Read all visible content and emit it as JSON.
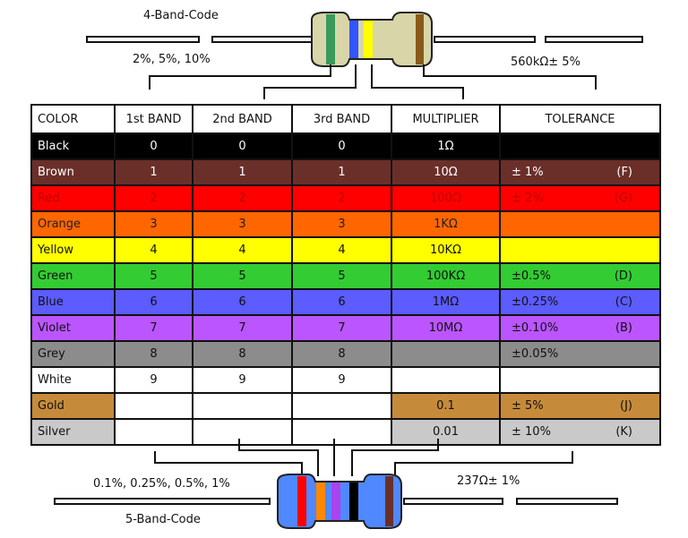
{
  "top_diagram": {
    "title": "4-Band-Code",
    "tolerance_options": "2%, 5%, 10%",
    "example_value": "560kΩ± 5%"
  },
  "bottom_diagram": {
    "title": "5-Band-Code",
    "tolerance_options": "0.1%, 0.25%, 0.5%, 1%",
    "example_value": "237Ω± 1%"
  },
  "table": {
    "headers": [
      "COLOR",
      "1st BAND",
      "2nd BAND",
      "3rd BAND",
      "MULTIPLIER",
      "TOLERANCE"
    ],
    "rows": [
      {
        "color": "Black",
        "b1": "0",
        "b2": "0",
        "b3": "0",
        "mult": "1Ω",
        "tol": "",
        "code": "",
        "bg": "#000000",
        "fg": "#ffffff"
      },
      {
        "color": "Brown",
        "b1": "1",
        "b2": "1",
        "b3": "1",
        "mult": "10Ω",
        "tol": "±   1%",
        "code": "(F)",
        "bg": "#6b2f2a",
        "fg": "#ffffff"
      },
      {
        "color": "Red",
        "b1": "2",
        "b2": "2",
        "b3": "2",
        "mult": "100Ω",
        "tol": "±   2%",
        "code": "(G)",
        "bg": "#ff0000",
        "fg": "#c00000"
      },
      {
        "color": "Orange",
        "b1": "3",
        "b2": "3",
        "b3": "3",
        "mult": "1KΩ",
        "tol": "",
        "code": "",
        "bg": "#ff6600",
        "fg": "#222222"
      },
      {
        "color": "Yellow",
        "b1": "4",
        "b2": "4",
        "b3": "4",
        "mult": "10KΩ",
        "tol": "",
        "code": "",
        "bg": "#ffff00",
        "fg": "#111111"
      },
      {
        "color": "Green",
        "b1": "5",
        "b2": "5",
        "b3": "5",
        "mult": "100KΩ",
        "tol": "±0.5%",
        "code": "(D)",
        "bg": "#33cc33",
        "fg": "#111111"
      },
      {
        "color": "Blue",
        "b1": "6",
        "b2": "6",
        "b3": "6",
        "mult": "1MΩ",
        "tol": "±0.25%",
        "code": "(C)",
        "bg": "#5c5cff",
        "fg": "#111111"
      },
      {
        "color": "Violet",
        "b1": "7",
        "b2": "7",
        "b3": "7",
        "mult": "10MΩ",
        "tol": "±0.10%",
        "code": "(B)",
        "bg": "#bb55ff",
        "fg": "#111111"
      },
      {
        "color": "Grey",
        "b1": "8",
        "b2": "8",
        "b3": "8",
        "mult": "",
        "tol": "±0.05%",
        "code": "",
        "bg": "#8c8c8c",
        "fg": "#111111"
      },
      {
        "color": "White",
        "b1": "9",
        "b2": "9",
        "b3": "9",
        "mult": "",
        "tol": "",
        "code": "",
        "bg": "#ffffff",
        "fg": "#111111"
      },
      {
        "color": "Gold",
        "b1": "",
        "b2": "",
        "b3": "",
        "mult": "0.1",
        "tol": "±   5%",
        "code": "(J)",
        "bg": "#c68b3a",
        "fg": "#111111",
        "blank_bands": true
      },
      {
        "color": "Silver",
        "b1": "",
        "b2": "",
        "b3": "",
        "mult": "0.01",
        "tol": "±  10%",
        "code": "(K)",
        "bg": "#c9c9c9",
        "fg": "#111111",
        "blank_bands": true
      }
    ]
  },
  "resistor_colors": {
    "body_top": "#d8d6a8",
    "body_bottom": "#4f88ff",
    "top_bands": [
      "#3a9a5a",
      "#3355ff",
      "#ffff00",
      "#8a5a1a"
    ],
    "bottom_bands": [
      "#ff0000",
      "#ff8800",
      "#aa44ee",
      "#000000",
      "#6b2f2a"
    ]
  }
}
